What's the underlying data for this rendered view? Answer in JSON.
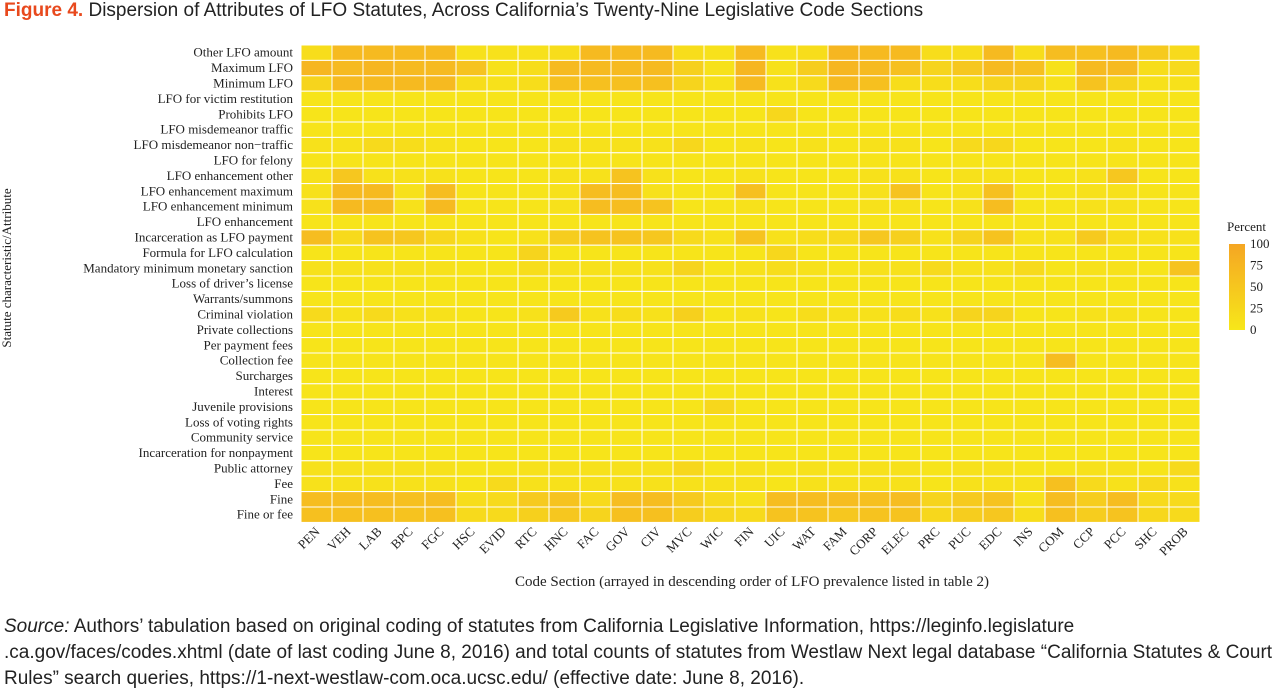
{
  "figure": {
    "label": "Figure 4.",
    "title": "Dispersion of Attributes of LFO Statutes, Across California’s Twenty-Nine Legislative Code Sections"
  },
  "source": {
    "label": "Source:",
    "text": "Authors’ tabulation based on original coding of statutes from California Legislative Information, https://leginfo.legislature .ca.gov/faces/codes.xhtml (date of last coding June 8, 2016) and total counts of statutes from Westlaw Next legal database “California Statutes & Court Rules” search queries, https://1-next-westlaw-com.oca.ucsc.edu/ (effective date: June 8, 2016)."
  },
  "colors": {
    "low": "#f7e71a",
    "high": "#f5a623",
    "figure_label": "#e8491d",
    "grid_line": "#ffffff"
  },
  "chart_data": {
    "type": "heatmap",
    "xlabel": "Code Section (arrayed in descending order of LFO prevalence listed in table 2)",
    "ylabel": "Statute characteristic/Attribute",
    "x": [
      "PEN",
      "VEH",
      "LAB",
      "BPC",
      "FGC",
      "HSC",
      "EVID",
      "RTC",
      "HNC",
      "FAC",
      "GOV",
      "CIV",
      "MVC",
      "WIC",
      "FIN",
      "UIC",
      "WAT",
      "FAM",
      "CORP",
      "ELEC",
      "PRC",
      "PUC",
      "EDC",
      "INS",
      "COM",
      "CCP",
      "PCC",
      "SHC",
      "PROB"
    ],
    "y": [
      "Other LFO amount",
      "Maximum LFO",
      "Minimum LFO",
      "LFO for victim restitution",
      "Prohibits LFO",
      "LFO misdemeanor traffic",
      "LFO misdemeanor non−traffic",
      "LFO for felony",
      "LFO enhancement other",
      "LFO enhancement maximum",
      "LFO enhancement minimum",
      "LFO enhancement",
      "Incarceration as LFO payment",
      "Formula for LFO calculation",
      "Mandatory minimum monetary sanction",
      "Loss of driver’s license",
      "Warrants/summons",
      "Criminal violation",
      "Private collections",
      "Per payment fees",
      "Collection fee",
      "Surcharges",
      "Interest",
      "Juvenile provisions",
      "Loss of voting rights",
      "Community service",
      "Incarceration for nonpayment",
      "Public attorney",
      "Fee",
      "Fine",
      "Fine or fee"
    ],
    "values": [
      [
        15,
        70,
        70,
        70,
        70,
        10,
        10,
        10,
        15,
        70,
        70,
        70,
        15,
        10,
        70,
        10,
        15,
        75,
        70,
        70,
        15,
        15,
        70,
        15,
        65,
        60,
        70,
        45,
        20
      ],
      [
        75,
        70,
        75,
        70,
        70,
        55,
        10,
        15,
        70,
        70,
        70,
        70,
        35,
        10,
        75,
        10,
        40,
        75,
        70,
        60,
        30,
        50,
        70,
        60,
        10,
        70,
        70,
        15,
        20
      ],
      [
        30,
        70,
        70,
        70,
        70,
        15,
        10,
        15,
        60,
        60,
        60,
        60,
        30,
        10,
        70,
        10,
        20,
        70,
        60,
        15,
        15,
        15,
        30,
        30,
        10,
        55,
        30,
        10,
        10
      ],
      [
        5,
        5,
        5,
        5,
        5,
        5,
        5,
        5,
        5,
        5,
        5,
        5,
        5,
        5,
        5,
        5,
        5,
        5,
        5,
        5,
        5,
        5,
        5,
        5,
        5,
        5,
        5,
        5,
        5
      ],
      [
        5,
        5,
        5,
        5,
        5,
        5,
        5,
        5,
        5,
        5,
        5,
        5,
        5,
        5,
        5,
        25,
        5,
        5,
        5,
        5,
        5,
        5,
        5,
        5,
        5,
        5,
        5,
        5,
        5
      ],
      [
        5,
        5,
        5,
        5,
        5,
        5,
        5,
        5,
        5,
        5,
        5,
        5,
        5,
        5,
        5,
        5,
        5,
        5,
        5,
        5,
        5,
        5,
        5,
        5,
        5,
        5,
        5,
        5,
        5
      ],
      [
        10,
        10,
        20,
        15,
        10,
        5,
        5,
        5,
        10,
        10,
        10,
        10,
        25,
        5,
        10,
        5,
        10,
        5,
        10,
        10,
        5,
        20,
        25,
        5,
        5,
        5,
        10,
        5,
        5
      ],
      [
        5,
        5,
        5,
        5,
        5,
        5,
        5,
        5,
        5,
        5,
        5,
        5,
        5,
        5,
        5,
        5,
        5,
        5,
        5,
        5,
        5,
        5,
        5,
        5,
        5,
        5,
        5,
        5,
        5
      ],
      [
        10,
        50,
        10,
        10,
        10,
        5,
        5,
        5,
        10,
        10,
        55,
        10,
        5,
        5,
        10,
        5,
        5,
        5,
        10,
        10,
        5,
        10,
        10,
        5,
        5,
        10,
        50,
        5,
        5
      ],
      [
        10,
        70,
        70,
        10,
        65,
        5,
        5,
        5,
        10,
        65,
        65,
        10,
        5,
        5,
        60,
        5,
        5,
        5,
        10,
        55,
        5,
        10,
        60,
        5,
        5,
        10,
        10,
        5,
        5
      ],
      [
        10,
        70,
        70,
        10,
        70,
        5,
        5,
        5,
        10,
        65,
        65,
        55,
        5,
        5,
        10,
        5,
        5,
        5,
        10,
        10,
        5,
        10,
        65,
        5,
        5,
        10,
        10,
        5,
        5
      ],
      [
        5,
        5,
        5,
        5,
        5,
        5,
        5,
        5,
        5,
        5,
        5,
        5,
        5,
        5,
        5,
        5,
        5,
        5,
        5,
        5,
        5,
        5,
        5,
        5,
        5,
        5,
        5,
        5,
        5
      ],
      [
        65,
        20,
        55,
        50,
        25,
        10,
        5,
        10,
        40,
        55,
        55,
        50,
        20,
        10,
        55,
        10,
        15,
        20,
        50,
        35,
        10,
        30,
        55,
        10,
        10,
        45,
        15,
        10,
        10
      ],
      [
        5,
        5,
        5,
        5,
        5,
        5,
        5,
        30,
        5,
        5,
        5,
        5,
        5,
        5,
        5,
        25,
        5,
        5,
        5,
        5,
        5,
        5,
        5,
        5,
        5,
        5,
        5,
        5,
        5
      ],
      [
        10,
        10,
        10,
        10,
        10,
        5,
        5,
        15,
        10,
        10,
        10,
        10,
        30,
        5,
        10,
        15,
        10,
        5,
        10,
        10,
        20,
        10,
        10,
        20,
        5,
        10,
        10,
        5,
        55
      ],
      [
        5,
        5,
        5,
        5,
        5,
        5,
        5,
        5,
        5,
        5,
        5,
        5,
        5,
        5,
        5,
        5,
        5,
        5,
        5,
        5,
        5,
        5,
        5,
        5,
        5,
        5,
        5,
        5,
        5
      ],
      [
        5,
        5,
        5,
        5,
        5,
        5,
        5,
        5,
        5,
        5,
        5,
        5,
        5,
        5,
        5,
        5,
        5,
        5,
        5,
        5,
        5,
        5,
        5,
        5,
        5,
        5,
        5,
        5,
        5
      ],
      [
        20,
        10,
        20,
        10,
        10,
        5,
        5,
        10,
        45,
        10,
        15,
        10,
        35,
        5,
        10,
        5,
        15,
        10,
        10,
        15,
        10,
        30,
        30,
        5,
        5,
        10,
        10,
        5,
        5
      ],
      [
        5,
        5,
        5,
        5,
        5,
        5,
        5,
        5,
        5,
        5,
        5,
        5,
        5,
        5,
        5,
        5,
        5,
        5,
        5,
        5,
        5,
        5,
        5,
        5,
        5,
        5,
        5,
        5,
        5
      ],
      [
        5,
        5,
        5,
        5,
        5,
        5,
        5,
        5,
        5,
        5,
        5,
        5,
        5,
        5,
        5,
        5,
        5,
        5,
        5,
        5,
        5,
        5,
        5,
        5,
        5,
        5,
        5,
        5,
        5
      ],
      [
        5,
        5,
        5,
        5,
        5,
        5,
        5,
        5,
        5,
        5,
        5,
        5,
        5,
        5,
        5,
        5,
        5,
        5,
        5,
        5,
        5,
        5,
        5,
        5,
        65,
        5,
        5,
        5,
        5
      ],
      [
        5,
        5,
        5,
        5,
        5,
        5,
        5,
        5,
        5,
        5,
        5,
        5,
        5,
        5,
        5,
        5,
        5,
        5,
        5,
        5,
        5,
        5,
        5,
        5,
        5,
        5,
        5,
        5,
        5
      ],
      [
        5,
        5,
        5,
        5,
        5,
        5,
        5,
        5,
        5,
        5,
        5,
        5,
        5,
        5,
        5,
        5,
        5,
        5,
        5,
        5,
        5,
        5,
        5,
        5,
        5,
        5,
        5,
        5,
        5
      ],
      [
        5,
        5,
        5,
        5,
        5,
        5,
        5,
        5,
        5,
        5,
        5,
        5,
        5,
        25,
        5,
        5,
        5,
        5,
        5,
        5,
        5,
        5,
        5,
        5,
        5,
        5,
        5,
        5,
        5
      ],
      [
        5,
        5,
        5,
        5,
        5,
        5,
        5,
        5,
        5,
        5,
        5,
        5,
        5,
        5,
        5,
        5,
        5,
        5,
        5,
        5,
        5,
        5,
        5,
        5,
        5,
        5,
        5,
        5,
        5
      ],
      [
        5,
        5,
        5,
        5,
        5,
        5,
        5,
        5,
        5,
        5,
        5,
        5,
        5,
        5,
        5,
        5,
        5,
        5,
        5,
        5,
        5,
        5,
        5,
        5,
        5,
        5,
        5,
        5,
        5
      ],
      [
        5,
        5,
        5,
        5,
        5,
        5,
        5,
        5,
        5,
        5,
        5,
        5,
        5,
        5,
        5,
        5,
        5,
        5,
        5,
        5,
        5,
        5,
        5,
        5,
        5,
        5,
        5,
        5,
        5
      ],
      [
        10,
        10,
        10,
        10,
        10,
        5,
        5,
        10,
        10,
        10,
        10,
        10,
        25,
        5,
        10,
        5,
        10,
        5,
        10,
        10,
        5,
        10,
        10,
        5,
        5,
        10,
        10,
        5,
        20
      ],
      [
        10,
        10,
        10,
        10,
        10,
        5,
        20,
        10,
        10,
        10,
        10,
        10,
        10,
        10,
        10,
        5,
        10,
        10,
        10,
        10,
        5,
        10,
        10,
        10,
        60,
        20,
        10,
        20,
        10
      ],
      [
        65,
        65,
        65,
        60,
        65,
        15,
        20,
        45,
        55,
        20,
        65,
        65,
        45,
        20,
        10,
        65,
        65,
        65,
        60,
        65,
        30,
        45,
        55,
        10,
        65,
        40,
        65,
        20,
        20
      ],
      [
        60,
        60,
        60,
        55,
        60,
        20,
        20,
        35,
        50,
        30,
        60,
        60,
        40,
        25,
        20,
        55,
        55,
        50,
        55,
        55,
        25,
        40,
        50,
        15,
        60,
        40,
        55,
        25,
        20
      ]
    ],
    "legend": {
      "title": "Percent",
      "ticks": [
        100,
        75,
        50,
        25,
        0
      ],
      "range": [
        0,
        100
      ],
      "placement": "right"
    }
  }
}
